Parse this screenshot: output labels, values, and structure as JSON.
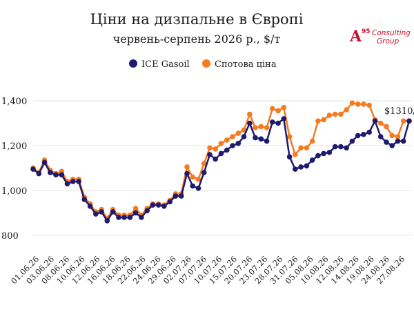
{
  "chart_data": {
    "type": "line",
    "title": "Ціни на дизпальне в Європі",
    "subtitle": "червень-серпень 2026 р., $/т",
    "legend": [
      "ICE Gasoil",
      "Спотова ціна"
    ],
    "legend_position": "top-center",
    "annotation": "$1310/",
    "ylim": [
      750,
      1450
    ],
    "yticks": [
      800,
      1000,
      1200,
      1400
    ],
    "ytick_labels": [
      "800",
      "1,000",
      "1,200",
      "1,400"
    ],
    "grid": true,
    "x_tick_labels": [
      "01.06.26",
      "03.06.26",
      "08.06.26",
      "10.06.26",
      "12.06.26",
      "16.06.26",
      "18.06.26",
      "22.06.26",
      "24.06.26",
      "29.06.26",
      "02.07.26",
      "07.07.26",
      "10.07.26",
      "15.07.26",
      "20.07.26",
      "23.07.26",
      "28.07.26",
      "31.07.26",
      "05.08.26",
      "10.08.26",
      "12.08.26",
      "14.08.26",
      "19.08.26",
      "24.08.26",
      "27.08.26"
    ],
    "series": [
      {
        "name": "ICE Gasoil",
        "color": "#1f1a6e",
        "values": [
          1095,
          1075,
          1125,
          1080,
          1070,
          1070,
          1030,
          1040,
          1040,
          960,
          930,
          895,
          905,
          865,
          905,
          880,
          880,
          880,
          900,
          880,
          910,
          935,
          935,
          930,
          950,
          975,
          975,
          1075,
          1020,
          1010,
          1080,
          1160,
          1140,
          1165,
          1180,
          1200,
          1210,
          1240,
          1300,
          1235,
          1230,
          1220,
          1305,
          1300,
          1320,
          1150,
          1095,
          1105,
          1110,
          1135,
          1155,
          1165,
          1170,
          1195,
          1195,
          1190,
          1220,
          1245,
          1250,
          1260,
          1310,
          1240,
          1215,
          1200,
          1220,
          1220,
          1310
        ]
      },
      {
        "name": "Спотова ціна",
        "color": "#f47b20",
        "values": [
          1100,
          1080,
          1135,
          1090,
          1075,
          1085,
          1040,
          1050,
          1050,
          970,
          940,
          905,
          915,
          875,
          915,
          890,
          890,
          890,
          920,
          890,
          920,
          940,
          940,
          935,
          955,
          985,
          985,
          1105,
          1060,
          1050,
          1120,
          1190,
          1185,
          1210,
          1225,
          1240,
          1255,
          1270,
          1340,
          1280,
          1285,
          1280,
          1365,
          1355,
          1370,
          1240,
          1160,
          1190,
          1190,
          1220,
          1310,
          1315,
          1335,
          1340,
          1340,
          1360,
          1390,
          1385,
          1385,
          1380,
          1315,
          1300,
          1285,
          1245,
          1240,
          1310,
          1310
        ]
      }
    ]
  },
  "branding": {
    "mark": "A",
    "mark_superscript": "95",
    "line1": "Consulting",
    "line2": "Group",
    "color": "#c8102e"
  }
}
